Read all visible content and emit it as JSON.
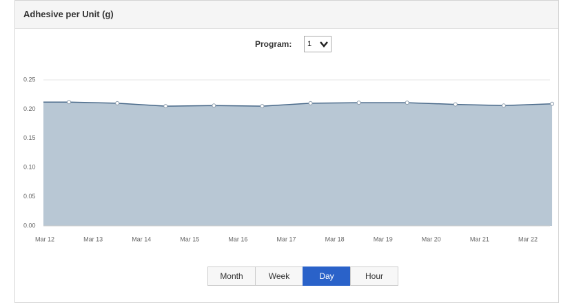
{
  "header": {
    "title": "Adhesive per Unit (g)"
  },
  "program": {
    "label": "Program:",
    "value": "1"
  },
  "chart_data": {
    "type": "area",
    "categories": [
      "Mar 12",
      "Mar 13",
      "Mar 14",
      "Mar 15",
      "Mar 16",
      "Mar 17",
      "Mar 18",
      "Mar 19",
      "Mar 20",
      "Mar 21",
      "Mar 22"
    ],
    "series": [
      {
        "name": "Adhesive per Unit",
        "color": "#4a6a8a",
        "fill": "#b8c7d4",
        "values": [
          0.212,
          0.21,
          0.205,
          0.206,
          0.205,
          0.21,
          0.211,
          0.211,
          0.208,
          0.206,
          0.209
        ]
      }
    ],
    "ylim": [
      0,
      0.25
    ],
    "yticks": [
      {
        "value": 0,
        "label": "0.00"
      },
      {
        "value": 0.05,
        "label": "0.05"
      },
      {
        "value": 0.1,
        "label": "0.10"
      },
      {
        "value": 0.15,
        "label": "0.15"
      },
      {
        "value": 0.2,
        "label": "0.20"
      },
      {
        "value": 0.25,
        "label": "0.25"
      }
    ],
    "grid": true
  },
  "buttons": [
    "Month",
    "Week",
    "Day",
    "Hour"
  ],
  "active_button": 2
}
